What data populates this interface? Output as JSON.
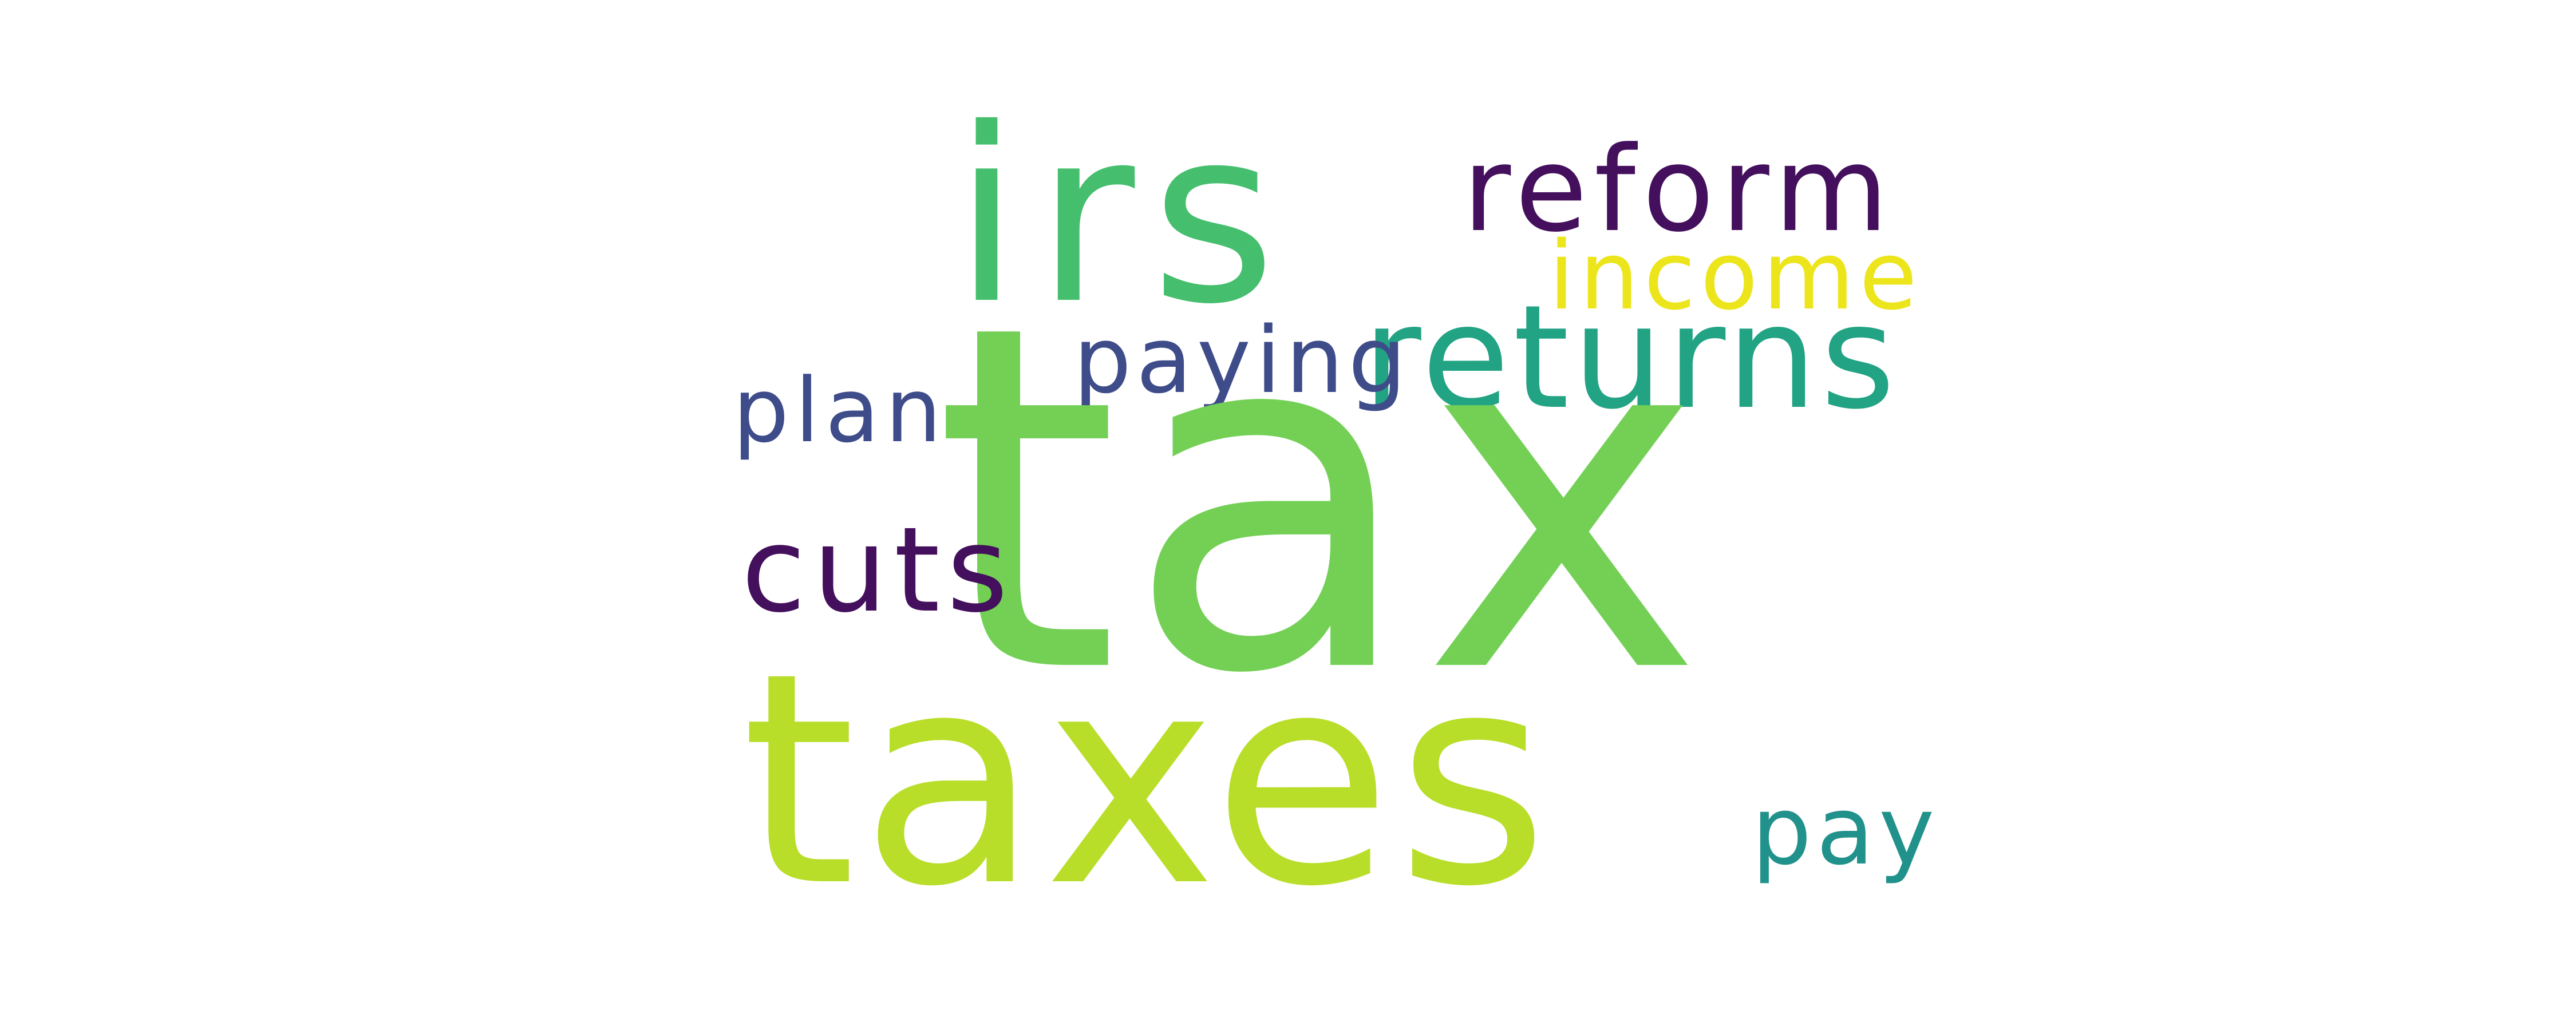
{
  "word_cloud": {
    "words": [
      {
        "text": "tax",
        "color": "#73d055"
      },
      {
        "text": "taxes",
        "color": "#b8de29"
      },
      {
        "text": "irs",
        "color": "#45bf6e"
      },
      {
        "text": "returns",
        "color": "#22a384"
      },
      {
        "text": "reform",
        "color": "#440f5c"
      },
      {
        "text": "income",
        "color": "#ede51b"
      },
      {
        "text": "cuts",
        "color": "#440f5c"
      },
      {
        "text": "plan",
        "color": "#3e4c8a"
      },
      {
        "text": "paying",
        "color": "#3e4c8a"
      },
      {
        "text": "pay",
        "color": "#21918c"
      }
    ]
  }
}
